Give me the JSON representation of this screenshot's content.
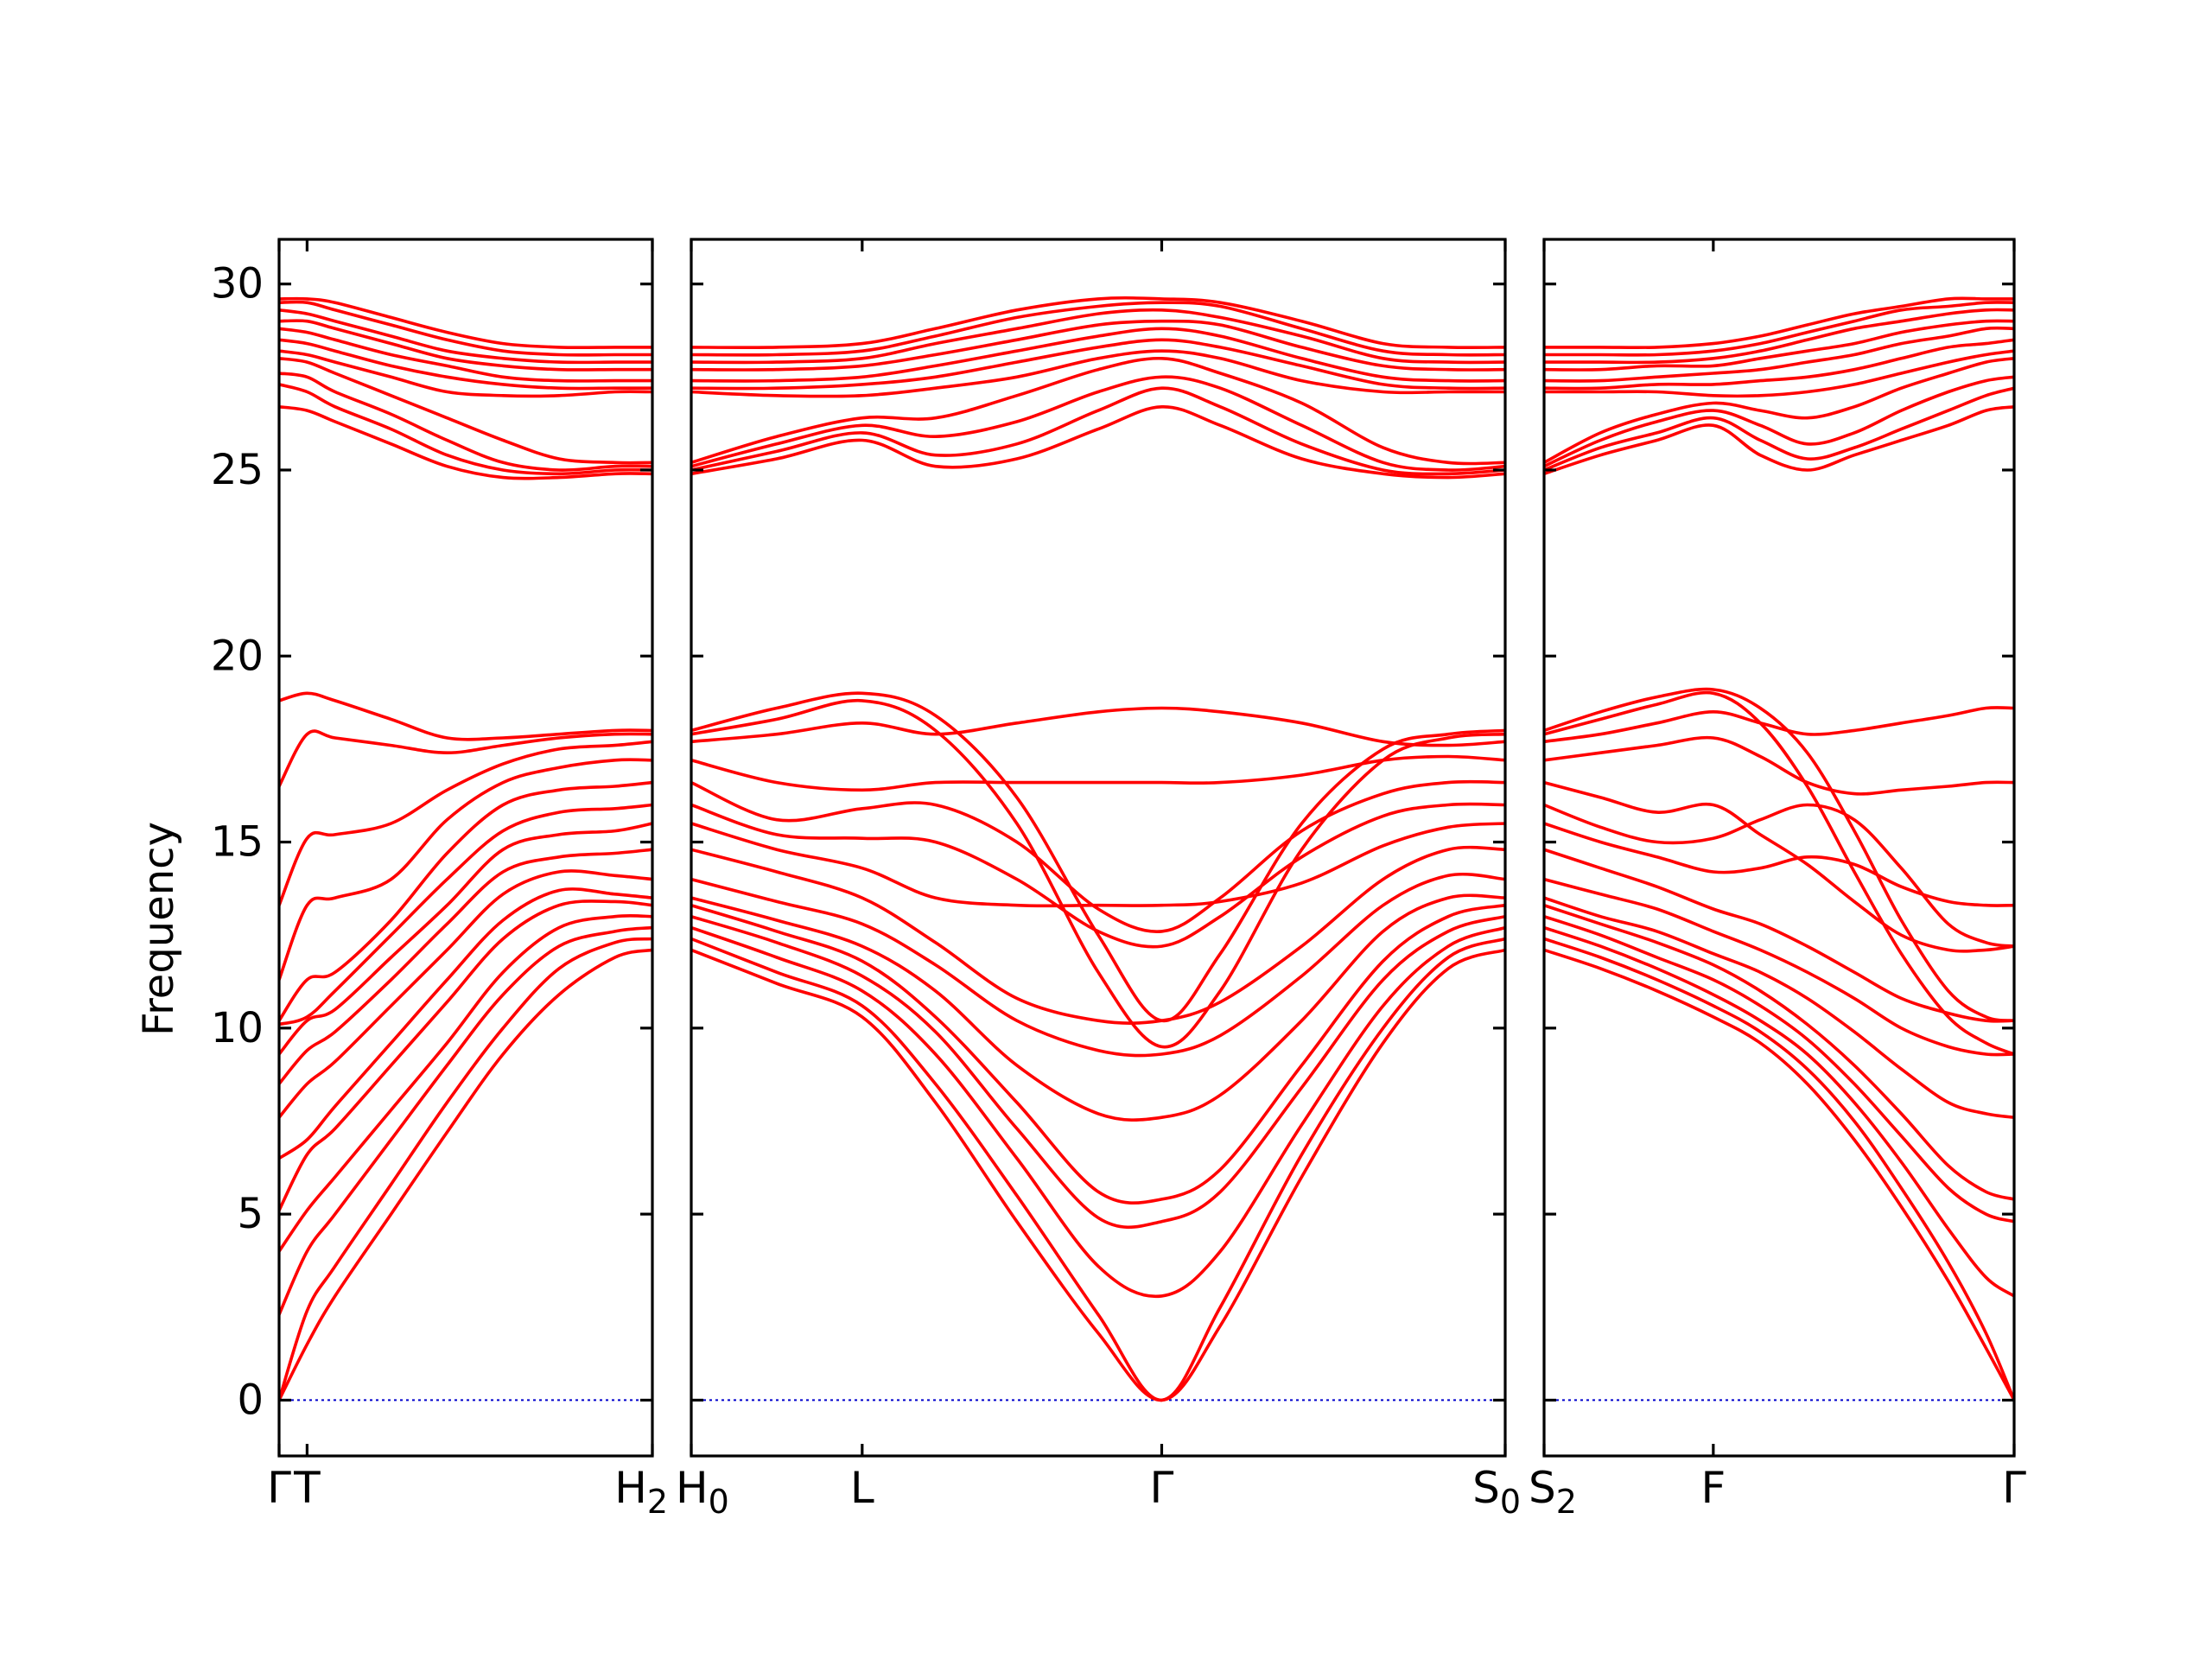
{
  "chart_data": {
    "type": "line",
    "title": "",
    "ylabel": "Frequency",
    "xlabel": "",
    "ylim": [
      -1.5,
      31.2
    ],
    "yticks": [
      "0",
      "5",
      "10",
      "15",
      "20",
      "25",
      "30"
    ],
    "grid": false,
    "legend": "none",
    "colors": {
      "bands": "#ff0000",
      "zero_line": "#0000cc",
      "axes": "#000000"
    },
    "panels": [
      {
        "name": "panel-1",
        "path": [
          "Γ",
          "T",
          "H2"
        ],
        "tick_labels": [
          {
            "at": 0.0,
            "text": "Γ"
          },
          {
            "at": 0.075,
            "text": "T"
          },
          {
            "at": 1.0,
            "text": "H",
            "sub": "2"
          }
        ],
        "x": [
          0,
          0.075,
          0.15,
          0.3,
          0.45,
          0.6,
          0.75,
          0.9,
          1.0
        ],
        "bands_low": [
          [
            0,
            1.5,
            2.8,
            5.0,
            7.2,
            9.3,
            10.9,
            11.9,
            12.1
          ],
          [
            0,
            2.4,
            3.6,
            5.8,
            8.0,
            10.0,
            11.6,
            12.3,
            12.4
          ],
          [
            2.3,
            4.0,
            5.0,
            7.0,
            9.0,
            10.9,
            12.2,
            12.6,
            12.7
          ],
          [
            4.0,
            5.1,
            6.0,
            7.8,
            9.6,
            11.5,
            12.7,
            13.0,
            13.0
          ],
          [
            5.1,
            6.6,
            7.3,
            9.0,
            10.7,
            12.4,
            13.3,
            13.4,
            13.3
          ],
          [
            6.5,
            7.0,
            7.9,
            9.6,
            11.3,
            12.9,
            13.7,
            13.6,
            13.5
          ],
          [
            7.6,
            8.5,
            9.1,
            10.6,
            12.1,
            13.6,
            14.2,
            14.1,
            14.0
          ],
          [
            8.5,
            9.4,
            9.9,
            11.3,
            12.8,
            14.2,
            14.6,
            14.7,
            14.8
          ],
          [
            9.3,
            10.2,
            10.5,
            11.9,
            13.3,
            14.8,
            15.2,
            15.3,
            15.5
          ],
          [
            10.1,
            10.3,
            11.0,
            12.5,
            14.0,
            15.3,
            15.8,
            15.9,
            16.0
          ],
          [
            10.2,
            11.3,
            11.5,
            12.9,
            14.7,
            16.0,
            16.4,
            16.5,
            16.6
          ],
          [
            11.3,
            13.3,
            13.5,
            14.0,
            15.6,
            16.6,
            17.0,
            17.2,
            17.2
          ],
          [
            13.3,
            15.1,
            15.2,
            15.5,
            16.4,
            17.1,
            17.5,
            17.6,
            17.7
          ],
          [
            16.5,
            17.9,
            17.8,
            17.6,
            17.4,
            17.6,
            17.8,
            17.9,
            17.9
          ],
          [
            18.8,
            19.0,
            18.8,
            18.3,
            17.8,
            17.8,
            17.9,
            18.0,
            18.0
          ]
        ],
        "bands_high": [
          [
            26.7,
            26.6,
            26.3,
            25.7,
            25.1,
            24.8,
            24.8,
            24.9,
            24.9
          ],
          [
            27.3,
            27.1,
            26.7,
            26.1,
            25.4,
            25.0,
            24.9,
            25.0,
            25.0
          ],
          [
            27.6,
            27.5,
            27.1,
            26.5,
            25.8,
            25.2,
            25.0,
            25.1,
            25.1
          ],
          [
            28.0,
            27.9,
            27.6,
            27.0,
            26.4,
            25.8,
            25.3,
            25.2,
            25.2
          ],
          [
            28.2,
            28.1,
            27.9,
            27.5,
            27.1,
            27.0,
            27.0,
            27.1,
            27.1
          ],
          [
            28.5,
            28.4,
            28.2,
            27.8,
            27.5,
            27.3,
            27.2,
            27.2,
            27.2
          ],
          [
            28.8,
            28.7,
            28.5,
            28.1,
            27.8,
            27.5,
            27.4,
            27.4,
            27.4
          ],
          [
            29.0,
            29.0,
            28.8,
            28.4,
            28.0,
            27.8,
            27.7,
            27.7,
            27.7
          ],
          [
            29.3,
            29.2,
            29.0,
            28.6,
            28.2,
            28.0,
            27.9,
            27.9,
            27.9
          ],
          [
            29.5,
            29.5,
            29.3,
            28.9,
            28.5,
            28.2,
            28.1,
            28.1,
            28.1
          ],
          [
            29.6,
            29.6,
            29.5,
            29.1,
            28.7,
            28.4,
            28.3,
            28.3,
            28.3
          ]
        ]
      },
      {
        "name": "panel-2",
        "path": [
          "H0",
          "L",
          "Γ",
          "S0"
        ],
        "tick_labels": [
          {
            "at": 0.0,
            "text": "H",
            "sub": "0"
          },
          {
            "at": 0.21,
            "text": "L"
          },
          {
            "at": 0.578,
            "text": "Γ"
          },
          {
            "at": 1.0,
            "text": "S",
            "sub": "0"
          }
        ],
        "x": [
          0,
          0.105,
          0.21,
          0.3,
          0.4,
          0.5,
          0.578,
          0.65,
          0.75,
          0.85,
          0.93,
          1.0
        ],
        "bands_low": [
          [
            12.1,
            11.2,
            10.3,
            8.0,
            4.8,
            1.8,
            0,
            2.0,
            6.0,
            9.6,
            11.6,
            12.1
          ],
          [
            12.4,
            11.5,
            10.6,
            8.5,
            5.5,
            2.3,
            0,
            2.5,
            6.6,
            10.0,
            11.9,
            12.4
          ],
          [
            12.7,
            11.9,
            11.0,
            9.3,
            6.5,
            3.6,
            2.8,
            4.0,
            7.4,
            10.6,
            12.2,
            12.7
          ],
          [
            13.0,
            12.3,
            11.4,
            9.9,
            7.3,
            4.9,
            4.8,
            5.6,
            8.4,
            11.3,
            12.6,
            13.0
          ],
          [
            13.3,
            12.6,
            11.8,
            10.3,
            8.0,
            5.6,
            5.4,
            6.2,
            9.0,
            11.8,
            13.0,
            13.3
          ],
          [
            13.5,
            12.9,
            12.2,
            11.0,
            9.0,
            7.7,
            7.6,
            8.2,
            10.2,
            12.6,
            13.5,
            13.5
          ],
          [
            14.0,
            13.4,
            12.8,
            11.7,
            10.2,
            9.4,
            9.3,
            9.8,
            11.4,
            13.3,
            14.1,
            14.0
          ],
          [
            14.8,
            14.2,
            13.5,
            12.3,
            10.8,
            10.2,
            10.2,
            10.7,
            12.2,
            14.0,
            14.8,
            14.8
          ],
          [
            15.5,
            14.8,
            14.3,
            13.5,
            13.3,
            13.3,
            13.3,
            13.4,
            13.9,
            14.9,
            15.4,
            15.5
          ],
          [
            16.0,
            15.2,
            15.1,
            15.0,
            14.0,
            12.6,
            12.2,
            13.0,
            14.6,
            15.7,
            16.0,
            16.0
          ],
          [
            16.6,
            15.6,
            15.9,
            16.0,
            15.0,
            13.2,
            12.6,
            13.5,
            15.3,
            16.3,
            16.6,
            16.6
          ],
          [
            17.2,
            16.6,
            16.4,
            16.6,
            16.6,
            16.6,
            16.6,
            16.6,
            16.8,
            17.2,
            17.3,
            17.2
          ],
          [
            17.7,
            17.9,
            18.2,
            17.9,
            18.2,
            18.5,
            18.6,
            18.5,
            18.2,
            17.7,
            17.6,
            17.7
          ],
          [
            17.9,
            18.3,
            18.8,
            18.0,
            15.5,
            11.5,
            9.5,
            11.0,
            14.8,
            17.2,
            17.8,
            17.9
          ],
          [
            18.0,
            18.6,
            19.0,
            18.4,
            16.2,
            12.5,
            10.2,
            12.0,
            15.5,
            17.5,
            17.9,
            18.0
          ]
        ],
        "bands_high": [
          [
            24.9,
            25.3,
            25.8,
            25.1,
            25.3,
            26.1,
            26.7,
            26.2,
            25.3,
            24.9,
            24.8,
            24.9
          ],
          [
            25.0,
            25.5,
            26.0,
            25.4,
            25.7,
            26.6,
            27.2,
            26.7,
            25.7,
            25.0,
            24.9,
            25.0
          ],
          [
            25.1,
            25.7,
            26.2,
            25.9,
            26.3,
            27.1,
            27.5,
            27.2,
            26.2,
            25.2,
            25.0,
            25.1
          ],
          [
            25.2,
            25.9,
            26.4,
            26.4,
            27.0,
            27.7,
            28.0,
            27.6,
            26.8,
            25.6,
            25.2,
            25.2
          ],
          [
            27.1,
            27.0,
            27.0,
            27.2,
            27.5,
            28.0,
            28.2,
            28.0,
            27.4,
            27.1,
            27.1,
            27.1
          ],
          [
            27.2,
            27.2,
            27.3,
            27.5,
            27.9,
            28.3,
            28.5,
            28.3,
            27.8,
            27.3,
            27.2,
            27.2
          ],
          [
            27.4,
            27.4,
            27.5,
            27.8,
            28.2,
            28.6,
            28.8,
            28.6,
            28.0,
            27.5,
            27.4,
            27.4
          ],
          [
            27.7,
            27.7,
            27.8,
            28.1,
            28.5,
            28.9,
            29.0,
            28.9,
            28.3,
            27.8,
            27.7,
            27.7
          ],
          [
            27.9,
            27.9,
            28.0,
            28.4,
            28.8,
            29.2,
            29.3,
            29.1,
            28.6,
            28.0,
            27.9,
            27.9
          ],
          [
            28.1,
            28.1,
            28.2,
            28.6,
            29.1,
            29.4,
            29.5,
            29.4,
            28.8,
            28.2,
            28.1,
            28.1
          ],
          [
            28.3,
            28.3,
            28.4,
            28.8,
            29.3,
            29.6,
            29.6,
            29.5,
            29.0,
            28.4,
            28.3,
            28.3
          ]
        ]
      },
      {
        "name": "panel-3",
        "path": [
          "S2",
          "F",
          "Γ"
        ],
        "tick_labels": [
          {
            "at": 0.0,
            "text": "S",
            "sub": "2"
          },
          {
            "at": 0.36,
            "text": "F"
          },
          {
            "at": 1.0,
            "text": "Γ"
          }
        ],
        "x": [
          0,
          0.12,
          0.24,
          0.36,
          0.46,
          0.56,
          0.66,
          0.76,
          0.86,
          0.94,
          1.0
        ],
        "bands_low": [
          [
            12.1,
            11.6,
            11.0,
            10.3,
            9.6,
            8.5,
            7.0,
            5.2,
            3.2,
            1.4,
            0
          ],
          [
            12.4,
            11.9,
            11.3,
            10.6,
            9.9,
            8.9,
            7.5,
            5.7,
            3.7,
            1.8,
            0
          ],
          [
            12.7,
            12.2,
            11.6,
            10.9,
            10.2,
            9.3,
            8.0,
            6.4,
            4.6,
            3.3,
            2.8
          ],
          [
            13.0,
            12.5,
            11.9,
            11.3,
            10.6,
            9.7,
            8.5,
            7.1,
            5.7,
            5.0,
            4.8
          ],
          [
            13.3,
            12.8,
            12.3,
            11.7,
            11.0,
            10.1,
            9.0,
            7.7,
            6.3,
            5.6,
            5.4
          ],
          [
            13.5,
            13.0,
            12.6,
            12.0,
            11.5,
            10.8,
            9.9,
            8.9,
            8.0,
            7.7,
            7.6
          ],
          [
            14.0,
            13.6,
            13.2,
            12.6,
            12.1,
            11.5,
            10.8,
            10.0,
            9.5,
            9.3,
            9.3
          ],
          [
            14.8,
            14.3,
            13.8,
            13.2,
            12.8,
            12.2,
            11.5,
            10.8,
            10.4,
            10.2,
            10.2
          ],
          [
            15.5,
            15.0,
            14.6,
            14.2,
            14.3,
            14.6,
            14.4,
            13.8,
            13.4,
            13.3,
            13.3
          ],
          [
            16.0,
            15.4,
            15.0,
            15.1,
            15.6,
            16.0,
            15.6,
            14.3,
            12.8,
            12.3,
            12.2
          ],
          [
            16.6,
            16.2,
            15.8,
            16.0,
            15.2,
            14.4,
            13.4,
            12.5,
            12.1,
            12.1,
            12.2
          ],
          [
            17.2,
            17.4,
            17.6,
            17.8,
            17.3,
            16.6,
            16.3,
            16.4,
            16.5,
            16.6,
            16.6
          ],
          [
            17.7,
            17.9,
            18.2,
            18.5,
            18.2,
            17.9,
            18.0,
            18.2,
            18.4,
            18.6,
            18.6
          ],
          [
            17.9,
            18.3,
            18.7,
            19.0,
            18.2,
            16.5,
            14.2,
            12.0,
            10.3,
            9.6,
            9.3
          ],
          [
            18.0,
            18.5,
            18.9,
            19.1,
            18.6,
            17.4,
            15.3,
            12.9,
            11.0,
            10.3,
            10.2
          ]
        ],
        "bands_high": [
          [
            24.9,
            25.4,
            25.8,
            26.2,
            25.4,
            25.0,
            25.4,
            25.8,
            26.2,
            26.6,
            26.7
          ],
          [
            25.0,
            25.6,
            26.0,
            26.4,
            25.8,
            25.3,
            25.6,
            26.1,
            26.6,
            27.0,
            27.2
          ],
          [
            25.1,
            25.8,
            26.3,
            26.6,
            26.2,
            25.7,
            26.0,
            26.6,
            27.1,
            27.4,
            27.5
          ],
          [
            25.2,
            26.0,
            26.5,
            26.8,
            26.6,
            26.4,
            26.7,
            27.2,
            27.6,
            27.9,
            28.0
          ],
          [
            27.1,
            27.1,
            27.1,
            27.0,
            27.0,
            27.1,
            27.3,
            27.6,
            27.9,
            28.1,
            28.2
          ],
          [
            27.2,
            27.2,
            27.3,
            27.3,
            27.4,
            27.5,
            27.7,
            28.0,
            28.3,
            28.4,
            28.5
          ],
          [
            27.4,
            27.4,
            27.5,
            27.6,
            27.7,
            27.9,
            28.1,
            28.4,
            28.6,
            28.8,
            28.8
          ],
          [
            27.7,
            27.7,
            27.8,
            27.8,
            28.0,
            28.2,
            28.4,
            28.7,
            28.9,
            29.0,
            29.0
          ],
          [
            27.9,
            27.9,
            27.9,
            28.0,
            28.2,
            28.5,
            28.8,
            29.0,
            29.2,
            29.3,
            29.3
          ],
          [
            28.1,
            28.1,
            28.1,
            28.2,
            28.4,
            28.7,
            29.0,
            29.3,
            29.4,
            29.5,
            29.5
          ],
          [
            28.3,
            28.3,
            28.3,
            28.4,
            28.6,
            28.9,
            29.2,
            29.4,
            29.6,
            29.6,
            29.6
          ]
        ]
      }
    ]
  }
}
